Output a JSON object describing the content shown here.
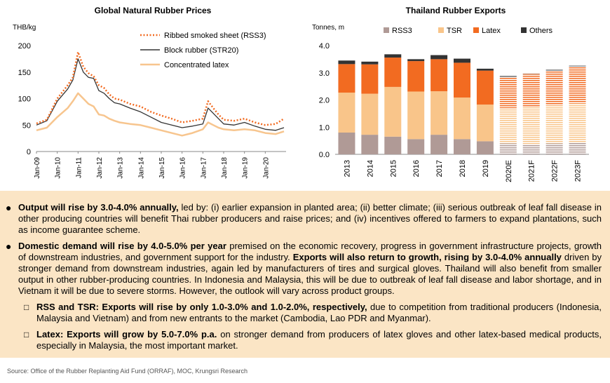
{
  "chart_data": [
    {
      "type": "line",
      "title": "Global Natural Rubber Prices",
      "ylabel": "THB/kg",
      "ylim": [
        0,
        200
      ],
      "yticks": [
        0,
        50,
        100,
        150,
        200
      ],
      "xticks": [
        "Jan-09",
        "Jan-10",
        "Jan-11",
        "Jan-12",
        "Jan-13",
        "Jan-14",
        "Jan-15",
        "Jan-16",
        "Jan-17",
        "Jan-18",
        "Jan-19",
        "Jan-20"
      ],
      "x": [
        2009.0,
        2009.5,
        2010.0,
        2010.5,
        2010.75,
        2011.0,
        2011.25,
        2011.5,
        2011.75,
        2012.0,
        2012.25,
        2012.5,
        2012.75,
        2013.0,
        2013.5,
        2014.0,
        2014.5,
        2015.0,
        2015.5,
        2016.0,
        2016.5,
        2017.0,
        2017.25,
        2017.5,
        2017.75,
        2018.0,
        2018.5,
        2019.0,
        2019.5,
        2020.0,
        2020.5,
        2020.9
      ],
      "series": [
        {
          "name": "Ribbed smoked sheet (RSS3)",
          "style": "dotted",
          "color": "#f26b21",
          "values": [
            53,
            60,
            100,
            125,
            140,
            188,
            160,
            148,
            142,
            125,
            120,
            108,
            100,
            98,
            90,
            85,
            75,
            68,
            62,
            55,
            58,
            62,
            95,
            82,
            70,
            60,
            58,
            62,
            55,
            50,
            52,
            62
          ]
        },
        {
          "name": "Block rubber (STR20)",
          "style": "solid",
          "color": "#333333",
          "values": [
            50,
            58,
            95,
            118,
            135,
            175,
            150,
            140,
            138,
            115,
            110,
            100,
            92,
            90,
            82,
            75,
            65,
            55,
            50,
            45,
            48,
            52,
            82,
            72,
            62,
            52,
            50,
            55,
            48,
            42,
            40,
            45
          ]
        },
        {
          "name": "Concentrated latex",
          "style": "solid",
          "color": "#f7c58e",
          "values": [
            40,
            45,
            65,
            82,
            95,
            110,
            100,
            90,
            85,
            70,
            68,
            62,
            58,
            55,
            52,
            50,
            45,
            40,
            35,
            30,
            35,
            42,
            55,
            50,
            45,
            42,
            40,
            42,
            40,
            35,
            33,
            38
          ]
        }
      ]
    },
    {
      "type": "bar",
      "stacked": true,
      "title": "Thailand Rubber Exports",
      "ylabel": "Tonnes, m",
      "ylim": [
        0,
        4.0
      ],
      "yticks": [
        "0.0",
        "1.0",
        "2.0",
        "3.0",
        "4.0"
      ],
      "categories": [
        "2013",
        "2014",
        "2015",
        "2016",
        "2017",
        "2018",
        "2019",
        "2020E",
        "2021F",
        "2022F",
        "2023F"
      ],
      "forecast_from": "2020E",
      "series": [
        {
          "name": "RSS3",
          "color": "#b09a96",
          "values": [
            0.8,
            0.72,
            0.65,
            0.56,
            0.72,
            0.56,
            0.48,
            0.4,
            0.38,
            0.4,
            0.42
          ]
        },
        {
          "name": "TSR",
          "color": "#f9c58a",
          "values": [
            1.47,
            1.51,
            1.83,
            1.75,
            1.6,
            1.53,
            1.35,
            1.3,
            1.35,
            1.4,
            1.45
          ]
        },
        {
          "name": "Latex",
          "color": "#f26b21",
          "values": [
            1.05,
            1.08,
            1.08,
            1.12,
            1.18,
            1.28,
            1.25,
            1.15,
            1.23,
            1.27,
            1.35
          ]
        },
        {
          "name": "Others",
          "color": "#333333",
          "values": [
            0.13,
            0.1,
            0.12,
            0.07,
            0.15,
            0.15,
            0.07,
            0.03,
            0.04,
            0.04,
            0.04
          ]
        }
      ]
    }
  ],
  "text": {
    "p1_bold": "Output will rise by 3.0-4.0% annually,",
    "p1_rest": " led by: (i) earlier expansion in planted area; (ii) better climate; (iii) serious outbreak of leaf fall disease in other producing countries will benefit Thai rubber producers and raise prices; and (iv) incentives offered to farmers to expand plantations, such as income guarantee scheme.",
    "p2_bold1": "Domestic demand will rise by 4.0-5.0% per year",
    "p2_mid": " premised on the economic recovery, progress in government infrastructure projects, growth of downstream industries, and government support for the industry. ",
    "p2_bold2": "Exports will also return to growth, rising by 3.0-4.0% annually",
    "p2_rest": " driven by stronger demand from downstream industries, again led by manufacturers of tires and surgical gloves. Thailand will also benefit from smaller output in other rubber-producing countries. In Indonesia and Malaysia, this will be due to outbreak of leaf fall disease and labor shortage, and in Vietnam it will be due to severe storms. However, the outlook will vary across product groups.",
    "s1_bold": "RSS and TSR: Exports will rise by only 1.0-3.0% and 1.0-2.0%, respectively,",
    "s1_rest": " due to competition from traditional producers (Indonesia, Malaysia and Vietnam) and from new entrants to the market (Cambodia, Lao PDR and Myanmar).",
    "s2_bold": "Latex: Exports will grow by 5.0-7.0% p.a.",
    "s2_rest": " on stronger demand from producers of latex gloves and other latex-based medical products, especially in Malaysia, the most important market.",
    "source": "Source: Office of the Rubber Replanting Aid Fund (ORRAF), MOC, Krungsri Research"
  }
}
